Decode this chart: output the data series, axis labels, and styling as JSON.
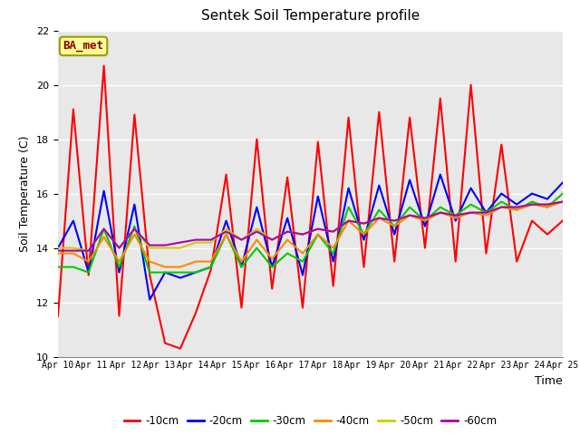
{
  "title": "Sentek Soil Temperature profile",
  "xlabel": "Time",
  "ylabel": "Soil Temperature (C)",
  "ylim": [
    10,
    22
  ],
  "yticks": [
    10,
    12,
    14,
    16,
    18,
    20,
    22
  ],
  "annotation_text": "BA_met",
  "bg_color": "#e8e8e8",
  "plot_bg": "#e8e8e8",
  "x_labels": [
    "Apr 10",
    "Apr 11",
    "Apr 12",
    "Apr 13",
    "Apr 14",
    "Apr 15",
    "Apr 16",
    "Apr 17",
    "Apr 18",
    "Apr 19",
    "Apr 20",
    "Apr 21",
    "Apr 22",
    "Apr 23",
    "Apr 24",
    "Apr 25"
  ],
  "series": {
    "10cm": {
      "color": "#ff0000",
      "linewidth": 1.5,
      "label": "-10cm",
      "y": [
        11.5,
        19.1,
        13.0,
        20.7,
        11.5,
        18.9,
        13.0,
        10.5,
        10.3,
        11.6,
        13.2,
        16.7,
        11.8,
        18.0,
        12.5,
        16.6,
        11.8,
        17.9,
        12.6,
        18.8,
        13.3,
        19.0,
        13.5,
        18.8,
        14.0,
        19.5,
        13.5,
        20.0,
        13.8,
        17.8,
        13.5,
        15.0,
        14.5,
        15.0
      ]
    },
    "20cm": {
      "color": "#0000ff",
      "linewidth": 1.5,
      "label": "-20cm",
      "y": [
        14.0,
        15.0,
        13.1,
        16.1,
        13.1,
        15.6,
        12.1,
        13.1,
        12.9,
        13.1,
        13.3,
        15.0,
        13.3,
        15.5,
        13.3,
        15.1,
        13.0,
        15.9,
        13.5,
        16.2,
        14.3,
        16.3,
        14.5,
        16.5,
        14.8,
        16.7,
        15.0,
        16.2,
        15.3,
        16.0,
        15.6,
        16.0,
        15.8,
        16.4
      ]
    },
    "30cm": {
      "color": "#00cc00",
      "linewidth": 1.5,
      "label": "-30cm",
      "y": [
        13.3,
        13.3,
        13.1,
        14.7,
        13.3,
        14.8,
        13.1,
        13.1,
        13.1,
        13.1,
        13.3,
        14.5,
        13.3,
        14.0,
        13.3,
        13.8,
        13.5,
        14.5,
        13.8,
        15.5,
        14.5,
        15.4,
        14.8,
        15.5,
        15.0,
        15.5,
        15.2,
        15.6,
        15.3,
        15.7,
        15.4,
        15.7,
        15.5,
        16.0
      ]
    },
    "40cm": {
      "color": "#ff8800",
      "linewidth": 1.5,
      "label": "-40cm",
      "y": [
        13.8,
        13.8,
        13.5,
        14.4,
        13.5,
        14.5,
        13.5,
        13.3,
        13.3,
        13.5,
        13.5,
        14.5,
        13.5,
        14.3,
        13.6,
        14.3,
        13.8,
        14.5,
        14.0,
        15.0,
        14.5,
        15.1,
        14.8,
        15.2,
        15.0,
        15.3,
        15.1,
        15.3,
        15.2,
        15.5,
        15.4,
        15.6,
        15.5,
        15.7
      ]
    },
    "50cm": {
      "color": "#cccc00",
      "linewidth": 1.5,
      "label": "-50cm",
      "y": [
        14.0,
        14.0,
        13.9,
        14.7,
        14.0,
        14.7,
        14.0,
        14.0,
        14.0,
        14.2,
        14.2,
        14.7,
        14.3,
        14.7,
        14.3,
        14.6,
        14.5,
        14.7,
        14.6,
        15.0,
        14.9,
        15.1,
        15.0,
        15.2,
        15.1,
        15.3,
        15.2,
        15.3,
        15.3,
        15.5,
        15.5,
        15.6,
        15.6,
        15.7
      ]
    },
    "60cm": {
      "color": "#aa00aa",
      "linewidth": 1.5,
      "label": "-60cm",
      "y": [
        13.9,
        13.9,
        13.9,
        14.7,
        14.0,
        14.7,
        14.1,
        14.1,
        14.2,
        14.3,
        14.3,
        14.6,
        14.3,
        14.6,
        14.3,
        14.6,
        14.5,
        14.7,
        14.6,
        15.0,
        14.9,
        15.1,
        15.0,
        15.2,
        15.1,
        15.3,
        15.2,
        15.3,
        15.3,
        15.5,
        15.5,
        15.6,
        15.6,
        15.7
      ]
    }
  }
}
